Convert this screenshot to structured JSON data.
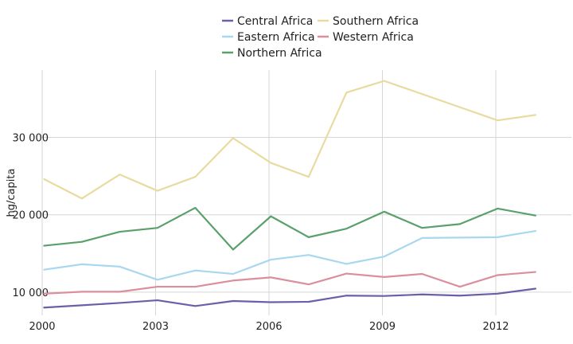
{
  "chart_data": {
    "type": "line",
    "title": "",
    "xlabel": "",
    "ylabel": "hg/capita",
    "x": [
      2000,
      2001,
      2002,
      2003,
      2004,
      2005,
      2006,
      2007,
      2008,
      2009,
      2010,
      2011,
      2012,
      2013
    ],
    "xticks": [
      2000,
      2003,
      2006,
      2009,
      2012
    ],
    "xtick_labels": [
      "2000",
      "2003",
      "2006",
      "2009",
      "2012"
    ],
    "yticks": [
      10000,
      20000,
      30000
    ],
    "ytick_labels": [
      "10 000",
      "20 000",
      "30 000"
    ],
    "xlim": [
      2000,
      2014
    ],
    "ylim": [
      7000,
      38700
    ],
    "grid": true,
    "legend_position": "top-center",
    "series": [
      {
        "name": "Central Africa",
        "color": "#6a5fa8",
        "values": [
          8000,
          8300,
          8600,
          8950,
          8200,
          8850,
          8700,
          8750,
          9550,
          9500,
          9700,
          9550,
          9800,
          10450
        ]
      },
      {
        "name": "Eastern Africa",
        "color": "#a8d8ef",
        "values": [
          12900,
          13600,
          13300,
          11600,
          12800,
          12350,
          14200,
          14800,
          13650,
          14600,
          17000,
          17050,
          17100,
          17900
        ]
      },
      {
        "name": "Northern Africa",
        "color": "#5aa06a",
        "values": [
          16000,
          16500,
          17800,
          18300,
          20900,
          15500,
          19800,
          17100,
          18200,
          20400,
          18300,
          18800,
          20800,
          19900
        ]
      },
      {
        "name": "Southern Africa",
        "color": "#e9dba0",
        "values": [
          24600,
          22100,
          25200,
          23100,
          24900,
          29900,
          26700,
          24900,
          35800,
          37300,
          35600,
          33900,
          32200,
          32900
        ]
      },
      {
        "name": "Western Africa",
        "color": "#dc8e9c",
        "values": [
          9800,
          10050,
          10050,
          10700,
          10700,
          11500,
          11900,
          11000,
          12400,
          11950,
          12350,
          10700,
          12200,
          12600
        ]
      }
    ]
  }
}
